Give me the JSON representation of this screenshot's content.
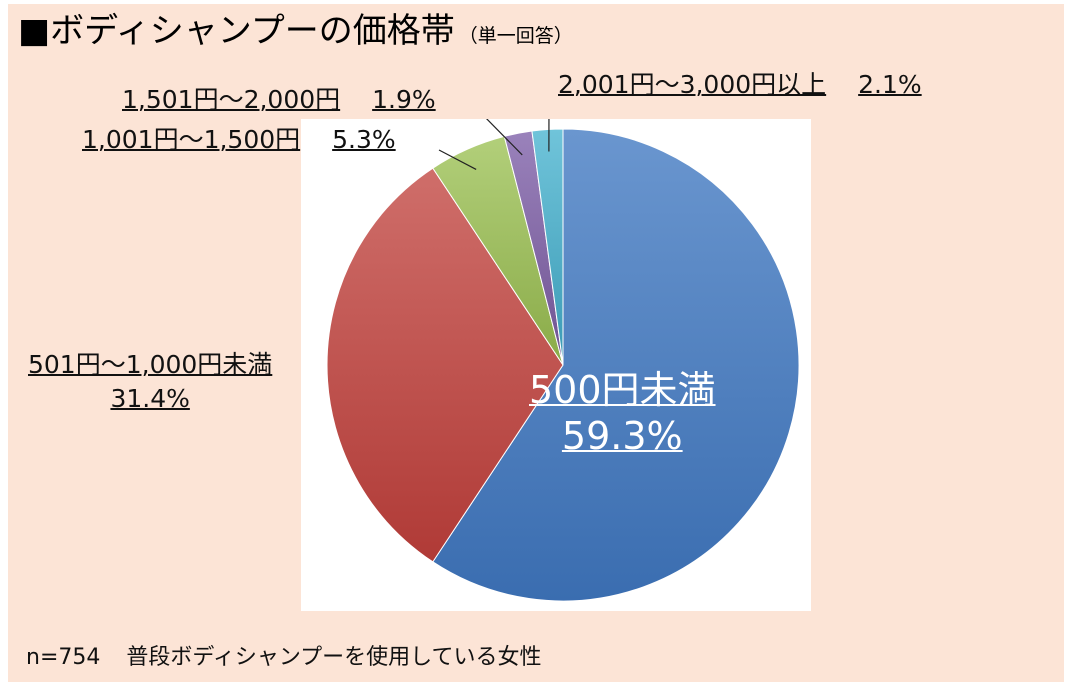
{
  "title": {
    "main": "■ボディシャンプーの価格帯",
    "sub": "（単一回答）"
  },
  "footer": {
    "sample": "n=754",
    "respondents": "普段ボディシャンプーを使用している女性"
  },
  "chart_data": {
    "type": "pie",
    "title": "■ボディシャンプーの価格帯",
    "start_angle_deg": 0,
    "direction": "clockwise",
    "slices": [
      {
        "label": "500円未満",
        "value": 59.3,
        "value_text": "59.3%",
        "color": "#4a7fc1"
      },
      {
        "label": "501円～1,000円未満",
        "value": 31.4,
        "value_text": "31.4%",
        "color": "#c0504d"
      },
      {
        "label": "1,001円～1,500円",
        "value": 5.3,
        "value_text": "5.3%",
        "color": "#9bbb59"
      },
      {
        "label": "1,501円～2,000円",
        "value": 1.9,
        "value_text": "1.9%",
        "color": "#8064a2"
      },
      {
        "label": "2,001円～3,000円以上",
        "value": 2.1,
        "value_text": "2.1%",
        "color": "#4bacc6"
      }
    ]
  }
}
